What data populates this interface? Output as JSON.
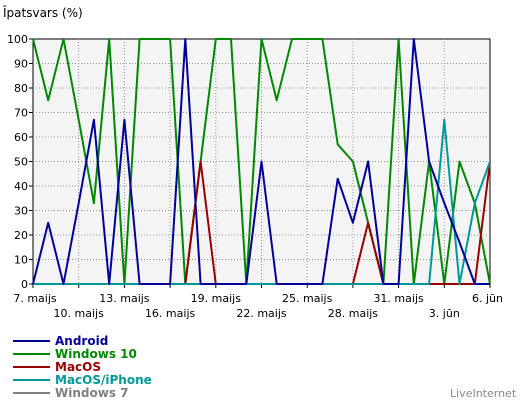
{
  "chart_data": {
    "type": "line",
    "title": "Īpatsvars (%)",
    "xlabel": "",
    "ylabel": "",
    "ylim": [
      0,
      100
    ],
    "yticks": [
      0,
      10,
      20,
      30,
      40,
      50,
      60,
      70,
      80,
      90,
      100
    ],
    "grid": true,
    "legend_position": "bottom-left",
    "x": [
      "7. maijs",
      "8. maijs",
      "9. maijs",
      "10. maijs",
      "11. maijs",
      "12. maijs",
      "13. maijs",
      "14. maijs",
      "15. maijs",
      "16. maijs",
      "17. maijs",
      "18. maijs",
      "19. maijs",
      "20. maijs",
      "21. maijs",
      "22. maijs",
      "23. maijs",
      "24. maijs",
      "25. maijs",
      "26. maijs",
      "27. maijs",
      "28. maijs",
      "29. maijs",
      "30. maijs",
      "31. maijs",
      "1. jūn",
      "2. jūn",
      "3. jūn",
      "4. jūn",
      "5. jūn",
      "6. jūn"
    ],
    "x_tick_labels": [
      {
        "index": 0,
        "label": "7. maijs",
        "row": 1
      },
      {
        "index": 3,
        "label": "10. maijs",
        "row": 2
      },
      {
        "index": 6,
        "label": "13. maijs",
        "row": 1
      },
      {
        "index": 9,
        "label": "16. maijs",
        "row": 2
      },
      {
        "index": 12,
        "label": "19. maijs",
        "row": 1
      },
      {
        "index": 15,
        "label": "22. maijs",
        "row": 2
      },
      {
        "index": 18,
        "label": "25. maijs",
        "row": 1
      },
      {
        "index": 21,
        "label": "28. maijs",
        "row": 2
      },
      {
        "index": 24,
        "label": "31. maijs",
        "row": 1
      },
      {
        "index": 27,
        "label": "3. jūn",
        "row": 2
      },
      {
        "index": 30,
        "label": "6. jūn",
        "row": 1
      }
    ],
    "series": [
      {
        "name": "Windows 7",
        "color": "#808080",
        "values": [
          0,
          0,
          0,
          0,
          0,
          0,
          0,
          0,
          0,
          0,
          0,
          0,
          0,
          0,
          0,
          0,
          0,
          0,
          0,
          0,
          0,
          0,
          0,
          0,
          0,
          0,
          0,
          0,
          0,
          0,
          0
        ]
      },
      {
        "name": "Windows 10",
        "color": "#008800",
        "values": [
          100,
          75,
          100,
          67,
          33,
          100,
          0,
          100,
          100,
          100,
          0,
          50,
          100,
          100,
          0,
          100,
          75,
          100,
          100,
          100,
          57,
          50,
          25,
          0,
          100,
          0,
          50,
          0,
          50,
          33,
          0
        ]
      },
      {
        "name": "MacOS",
        "color": "#990000",
        "values": [
          0,
          0,
          0,
          0,
          0,
          0,
          0,
          0,
          0,
          0,
          0,
          50,
          0,
          0,
          0,
          0,
          0,
          0,
          0,
          0,
          0,
          0,
          25,
          0,
          0,
          0,
          0,
          0,
          0,
          0,
          50
        ]
      },
      {
        "name": "MacOS/iPhone",
        "color": "#009999",
        "values": [
          0,
          0,
          0,
          0,
          0,
          0,
          0,
          0,
          0,
          0,
          0,
          0,
          0,
          0,
          0,
          0,
          0,
          0,
          0,
          0,
          0,
          0,
          0,
          0,
          0,
          0,
          0,
          67,
          0,
          33,
          50
        ]
      },
      {
        "name": "Android",
        "color": "#000099",
        "values": [
          0,
          25,
          0,
          33,
          67,
          0,
          67,
          0,
          0,
          0,
          100,
          0,
          0,
          0,
          0,
          50,
          0,
          0,
          0,
          0,
          43,
          25,
          50,
          0,
          0,
          100,
          50,
          33,
          17,
          0,
          0
        ]
      }
    ],
    "legend_order": [
      "Android",
      "Windows 10",
      "MacOS",
      "MacOS/iPhone",
      "Windows 7"
    ]
  },
  "brand": "LiveInternet"
}
